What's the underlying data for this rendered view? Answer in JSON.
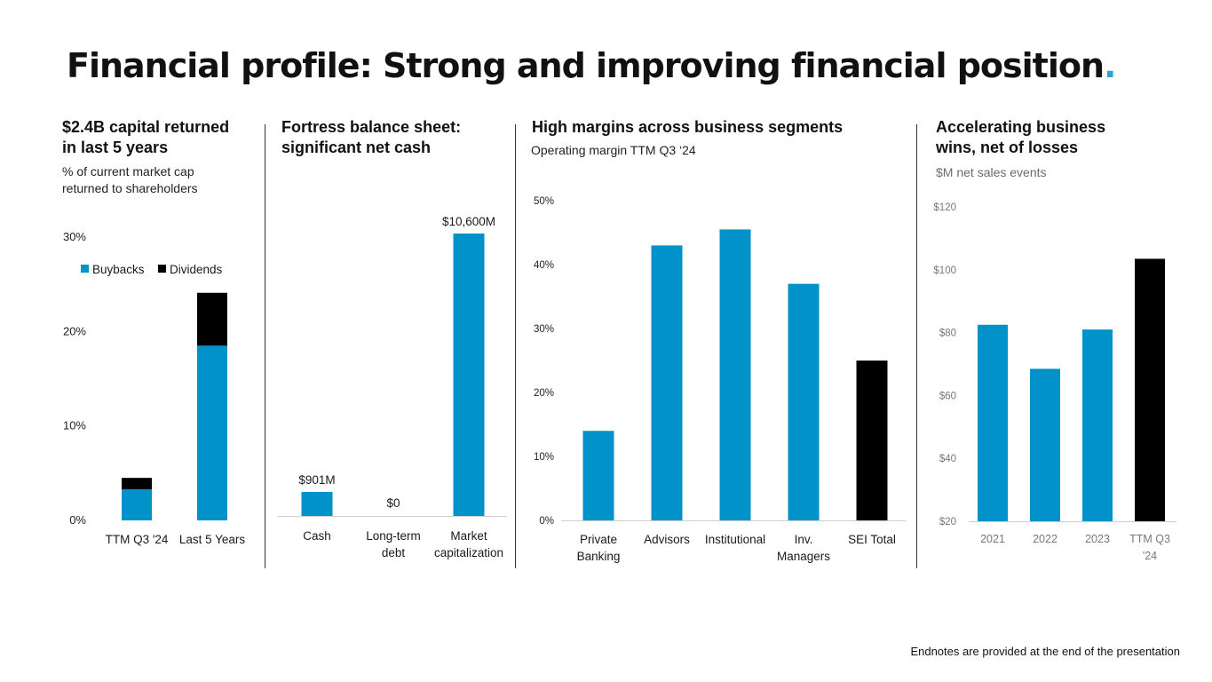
{
  "page": {
    "title": "Financial profile: Strong and improving financial position",
    "title_dot": ".",
    "footnote": "Endnotes are provided at the end of the presentation"
  },
  "colors": {
    "blue": "#0092c8",
    "black": "#000000",
    "accent": "#2aa3d8"
  },
  "panels": {
    "capital": {
      "title_line1": "$2.4B capital returned",
      "title_line2": "in last 5 years",
      "subtitle_line1": "% of current market cap",
      "subtitle_line2": "returned to shareholders"
    },
    "balance": {
      "title_line1": "Fortress balance sheet:",
      "title_line2": "significant net cash"
    },
    "margins": {
      "title": "High margins across business segments",
      "subtitle": "Operating margin TTM Q3 ‘24"
    },
    "wins": {
      "title_line1": "Accelerating business",
      "title_line2": "wins, net of losses",
      "subtitle": "$M net sales events"
    }
  },
  "chart_data": [
    {
      "id": "capital",
      "type": "bar",
      "stacked": true,
      "categories": [
        "TTM Q3 '24",
        "Last 5 Years"
      ],
      "series": [
        {
          "name": "Buybacks",
          "color": "#0092c8",
          "values": [
            3.3,
            18.5
          ]
        },
        {
          "name": "Dividends",
          "color": "#000000",
          "values": [
            1.2,
            5.6
          ]
        }
      ],
      "ylim": [
        0,
        30
      ],
      "yticks": [
        0,
        10,
        20,
        30
      ],
      "ytick_labels": [
        "0%",
        "10%",
        "20%",
        "30%"
      ],
      "legend": "top-left"
    },
    {
      "id": "balance",
      "type": "bar",
      "categories": [
        "Cash",
        "Long-term debt",
        "Market capitalization"
      ],
      "category_lines": [
        [
          "Cash"
        ],
        [
          "Long-term",
          "debt"
        ],
        [
          "Market",
          "capitalization"
        ]
      ],
      "values": [
        901,
        0,
        10600
      ],
      "data_labels": [
        "$901M",
        "$0",
        "$10,600M"
      ],
      "colors": [
        "#0092c8",
        "#0092c8",
        "#0092c8"
      ],
      "ylim": [
        0,
        10600
      ]
    },
    {
      "id": "margins",
      "type": "bar",
      "categories": [
        "Private Banking",
        "Advisors",
        "Institutional",
        "Inv. Managers",
        "SEI Total"
      ],
      "category_lines": [
        [
          "Private",
          "Banking"
        ],
        [
          "Advisors"
        ],
        [
          "Institutional"
        ],
        [
          "Inv.",
          "Managers"
        ],
        [
          "SEI Total"
        ]
      ],
      "values": [
        14,
        43,
        45.5,
        37,
        25
      ],
      "colors": [
        "#0092c8",
        "#0092c8",
        "#0092c8",
        "#0092c8",
        "#000000"
      ],
      "ylim": [
        0,
        50
      ],
      "yticks": [
        0,
        10,
        20,
        30,
        40,
        50
      ],
      "ytick_labels": [
        "0%",
        "10%",
        "20%",
        "30%",
        "40%",
        "50%"
      ]
    },
    {
      "id": "wins",
      "type": "bar",
      "categories": [
        "2021",
        "2022",
        "2023",
        "TTM Q3 '24"
      ],
      "category_lines": [
        [
          "2021"
        ],
        [
          "2022"
        ],
        [
          "2023"
        ],
        [
          "TTM Q3",
          "'24"
        ]
      ],
      "values": [
        82.5,
        68.5,
        81,
        103.5
      ],
      "colors": [
        "#0092c8",
        "#0092c8",
        "#0092c8",
        "#000000"
      ],
      "ylim": [
        20,
        120
      ],
      "yticks": [
        20,
        40,
        60,
        80,
        100,
        120
      ],
      "ytick_labels": [
        "$20",
        "$40",
        "$60",
        "$80",
        "$100",
        "$120"
      ]
    }
  ]
}
